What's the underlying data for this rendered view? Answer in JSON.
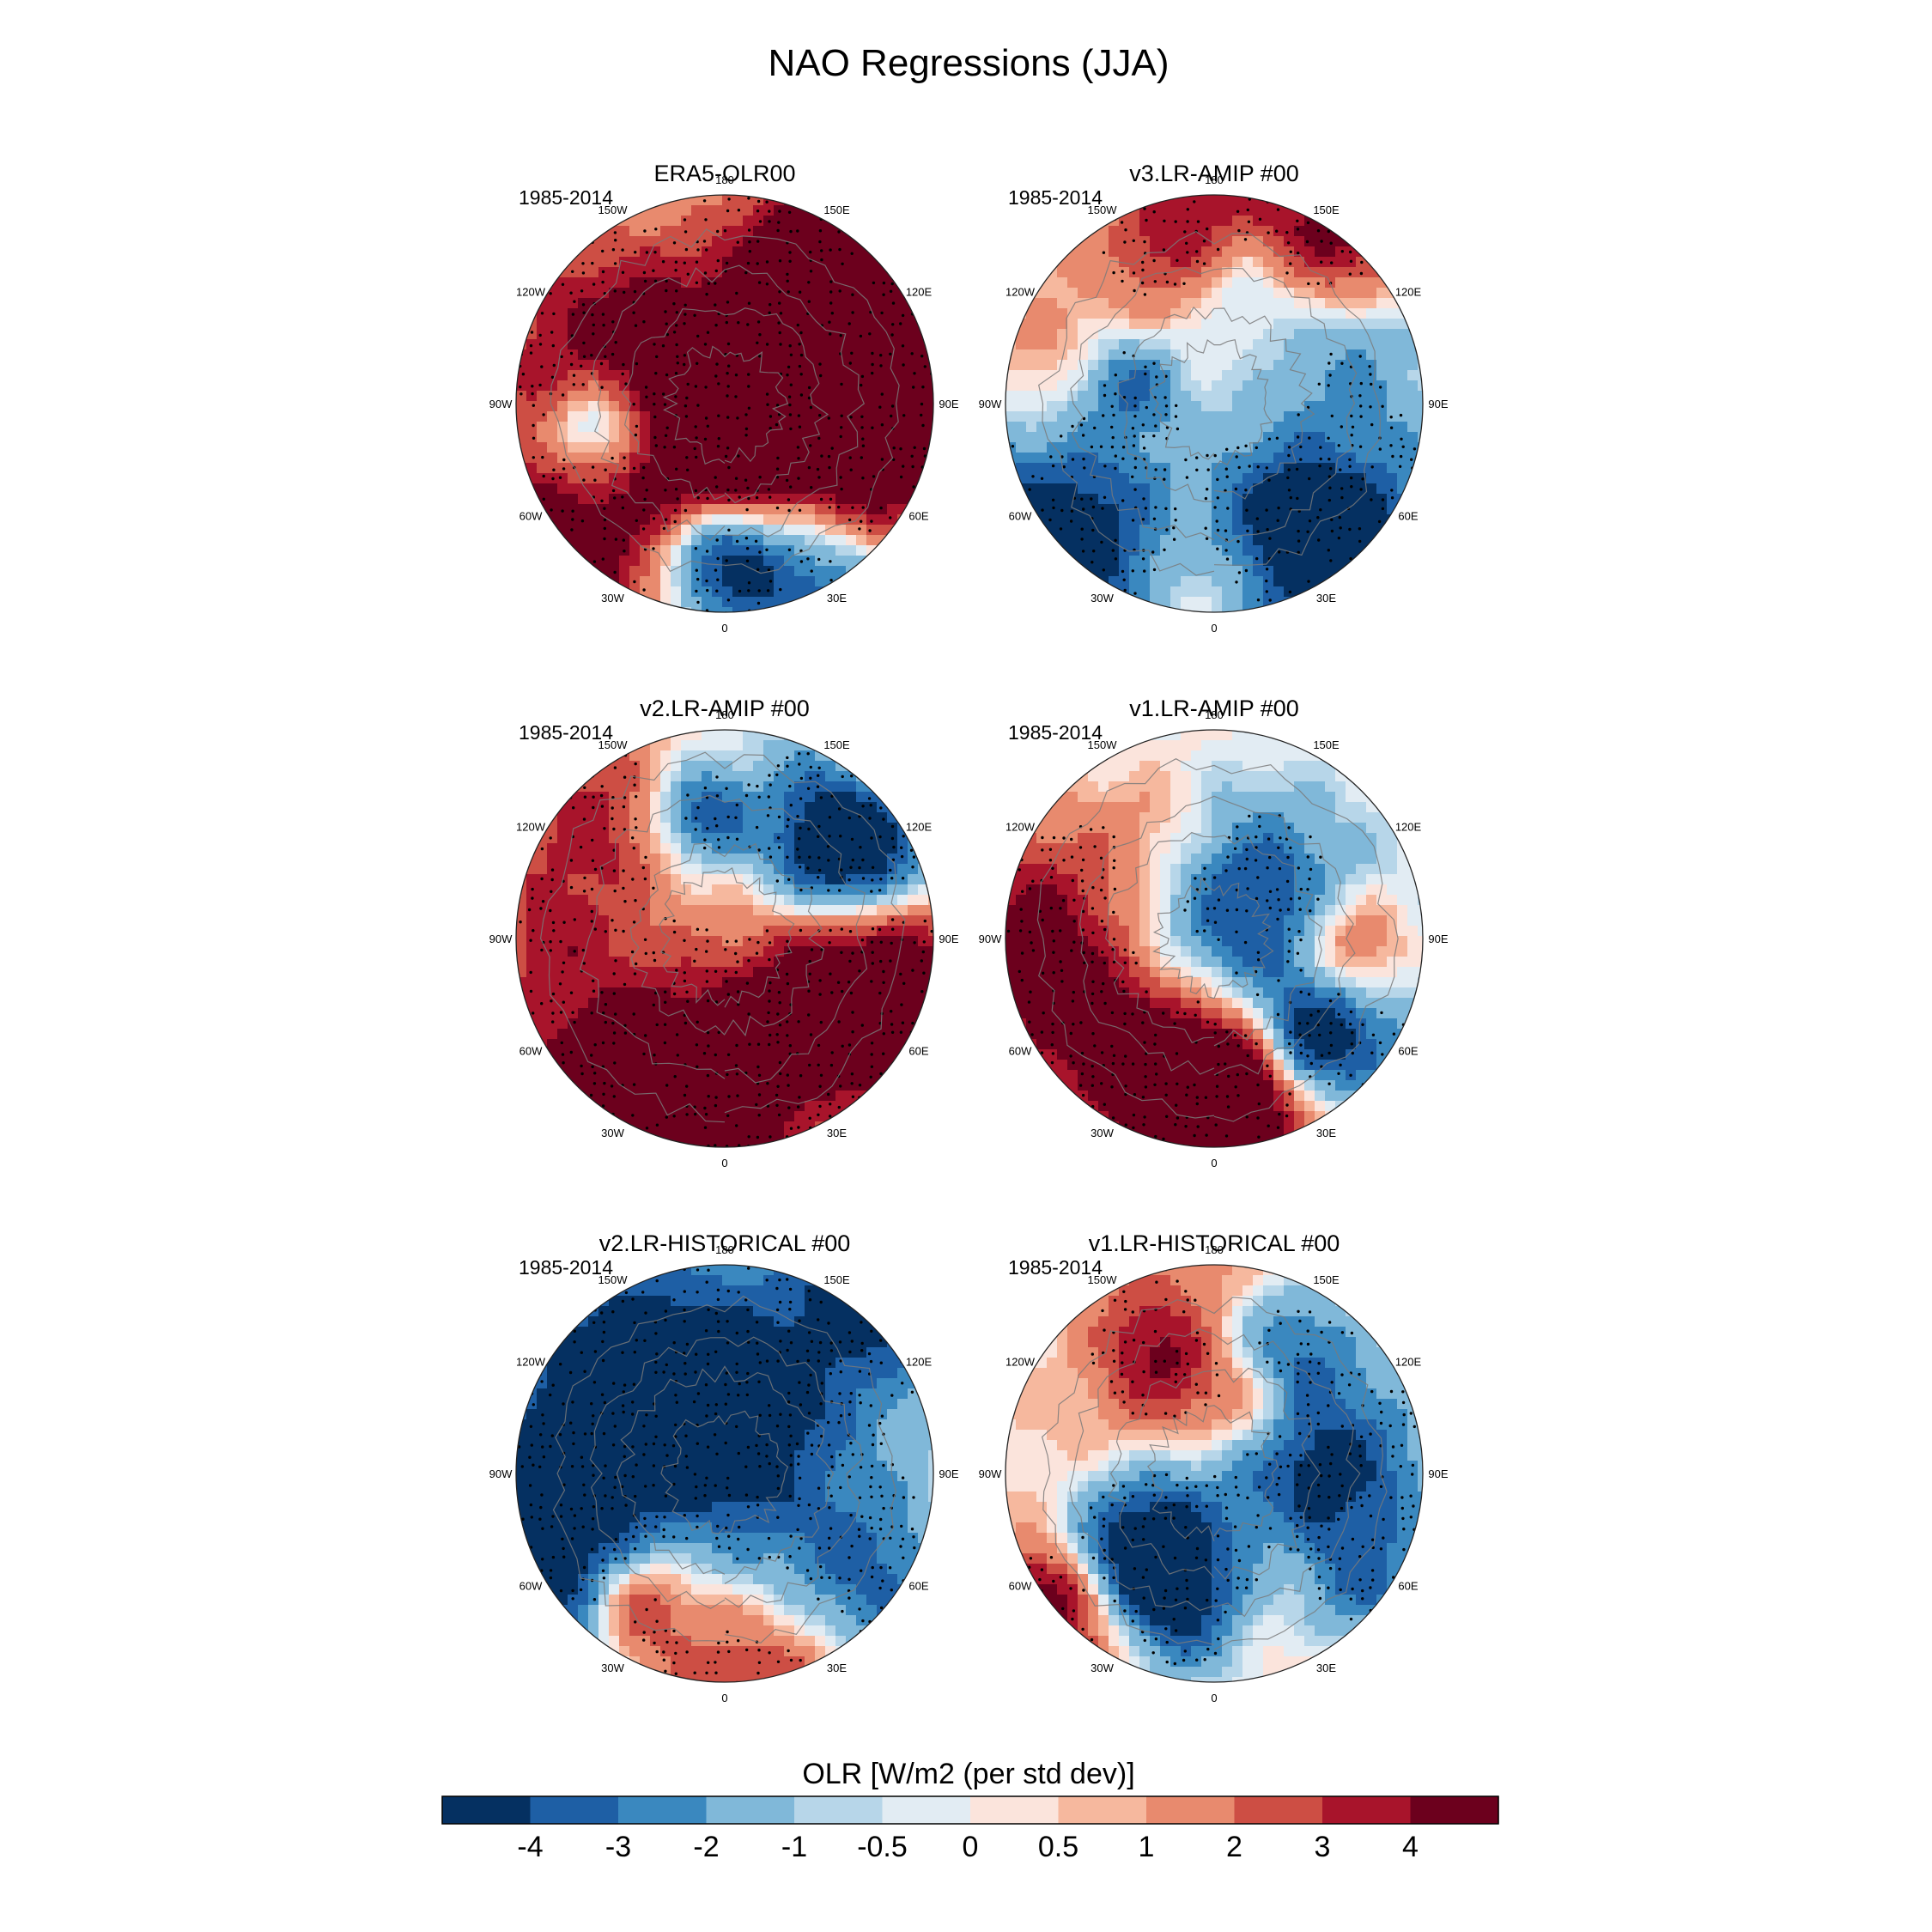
{
  "chart_data": {
    "type": "polar-stereographic contour map panels",
    "title": "NAO Regressions (JJA)",
    "period_label": "1985-2014",
    "longitude_labels": [
      "180",
      "150E",
      "120E",
      "90E",
      "60E",
      "30E",
      "0",
      "30W",
      "60W",
      "90W",
      "120W",
      "150W"
    ],
    "panels": [
      {
        "title": "ERA5-OLR00",
        "period": "1985-2014",
        "seed": 11
      },
      {
        "title": "v3.LR-AMIP  #00",
        "period": "1985-2014",
        "seed": 23
      },
      {
        "title": "v2.LR-AMIP  #00",
        "period": "1985-2014",
        "seed": 37
      },
      {
        "title": "v1.LR-AMIP  #00",
        "period": "1985-2014",
        "seed": 41
      },
      {
        "title": "v2.LR-HISTORICAL  #00",
        "period": "1985-2014",
        "seed": 53
      },
      {
        "title": "v1.LR-HISTORICAL  #00",
        "period": "1985-2014",
        "seed": 67
      }
    ],
    "colorbar": {
      "label": "OLR [W/m2 (per std dev)]",
      "tick_labels": [
        "-4",
        "-3",
        "-2",
        "-1",
        "-0.5",
        "0",
        "0.5",
        "1",
        "2",
        "3",
        "4"
      ],
      "colors": [
        "#053061",
        "#1e5fa5",
        "#3a88bf",
        "#80b8d9",
        "#b7d6e9",
        "#e2ecf3",
        "#fbe4dc",
        "#f6b89e",
        "#e88a6e",
        "#cd4e44",
        "#a8142b",
        "#6c001d"
      ]
    }
  }
}
